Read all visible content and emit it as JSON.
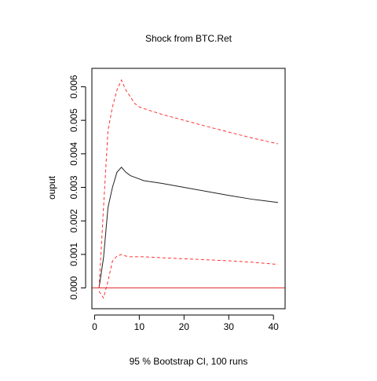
{
  "chart_data": {
    "type": "line",
    "title": "Shock from BTC.Ret",
    "xlabel": "95 % Bootstrap CI,  100 runs",
    "ylabel": "ouput",
    "xlim": [
      -0.6,
      42.6
    ],
    "ylim": [
      -0.00062,
      0.00655
    ],
    "x_ticks": [
      0,
      10,
      20,
      30,
      40
    ],
    "x_tick_labels": [
      "0",
      "10",
      "20",
      "30",
      "40"
    ],
    "y_ticks": [
      0.0,
      0.001,
      0.002,
      0.003,
      0.004,
      0.005,
      0.006
    ],
    "y_tick_labels": [
      "0.000",
      "0.001",
      "0.002",
      "0.003",
      "0.004",
      "0.005",
      "0.006"
    ],
    "grid": false,
    "legend": "none",
    "zero_line": {
      "y": 0,
      "color": "#e03030"
    },
    "series": [
      {
        "style": "solid",
        "color": "#222222",
        "x": [
          1,
          2,
          3,
          4,
          5,
          6,
          7,
          8,
          9,
          10,
          11,
          15,
          20,
          25,
          30,
          35,
          41
        ],
        "y": [
          0.0,
          0.0009,
          0.0024,
          0.003,
          0.00345,
          0.0036,
          0.00345,
          0.00335,
          0.0033,
          0.00325,
          0.0032,
          0.00312,
          0.003,
          0.00288,
          0.00276,
          0.00265,
          0.00255
        ]
      },
      {
        "style": "dashed",
        "color": "#ff3030",
        "x": [
          1,
          2,
          3,
          4,
          5,
          6,
          7,
          8,
          9,
          10,
          11,
          15,
          20,
          25,
          30,
          35,
          41
        ],
        "y": [
          0.0,
          0.0024,
          0.0047,
          0.0054,
          0.0059,
          0.0062,
          0.0059,
          0.0057,
          0.0055,
          0.0054,
          0.00535,
          0.00518,
          0.005,
          0.00482,
          0.00465,
          0.00448,
          0.0043
        ]
      },
      {
        "style": "dashed",
        "color": "#ff3030",
        "x": [
          1,
          2,
          3,
          4,
          5,
          6,
          7,
          8,
          9,
          10,
          11,
          15,
          20,
          25,
          30,
          35,
          41
        ],
        "y": [
          -0.0001,
          -0.0003,
          0.0002,
          0.0008,
          0.00095,
          0.001,
          0.00095,
          0.00093,
          0.00093,
          0.00093,
          0.00093,
          0.0009,
          0.00087,
          0.00084,
          0.00081,
          0.00077,
          0.0007
        ]
      }
    ]
  }
}
